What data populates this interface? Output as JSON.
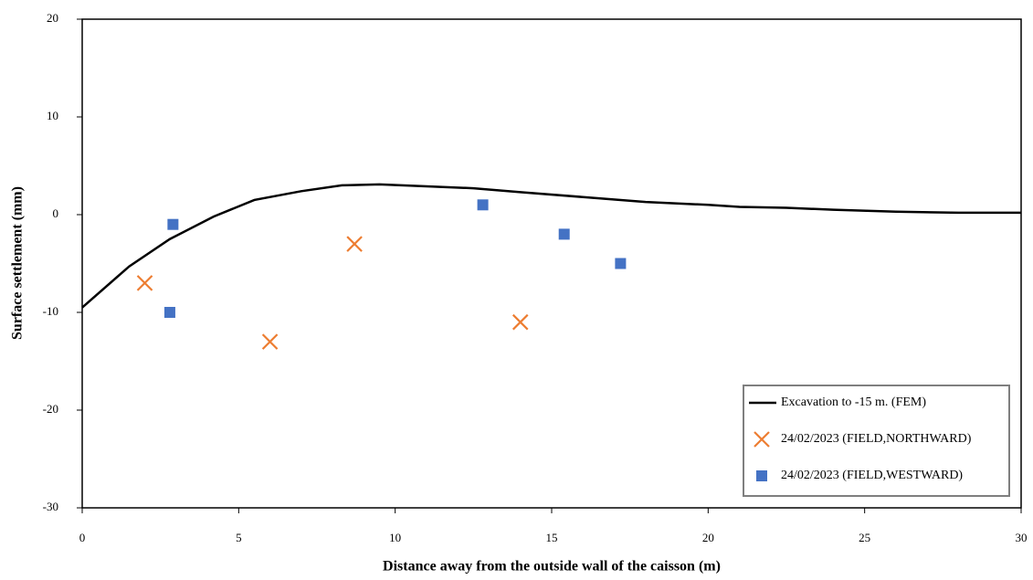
{
  "chart_data": {
    "type": "combo",
    "xlabel": "Distance away from the outside wall of the caisson (m)",
    "ylabel": "Surface settlement (mm)",
    "xlim": [
      0,
      30
    ],
    "xticks": [
      0,
      5,
      10,
      15,
      20,
      25,
      30
    ],
    "ylim": [
      -30,
      20
    ],
    "yticks": [
      -30,
      -20,
      -10,
      0,
      10,
      20
    ],
    "legend": "lower right",
    "series": [
      {
        "name": "Excavation to -15 m.  (FEM)",
        "type": "line",
        "color": "#000000",
        "x": [
          0,
          1.5,
          2.8,
          4.2,
          5.5,
          7,
          8.3,
          9.5,
          11,
          12.5,
          14,
          16,
          18,
          20,
          21,
          22.5,
          24,
          26,
          28,
          30
        ],
        "values": [
          -9.5,
          -5.3,
          -2.5,
          -0.2,
          1.5,
          2.4,
          3.0,
          3.1,
          2.9,
          2.7,
          2.3,
          1.8,
          1.3,
          1.0,
          0.8,
          0.7,
          0.5,
          0.3,
          0.2,
          0.2
        ]
      },
      {
        "name": "24/02/2023 (FIELD,NORTHWARD)",
        "type": "scatter",
        "marker": "x",
        "color": "#ed7d31",
        "x": [
          2.0,
          6.0,
          8.7,
          14.0
        ],
        "values": [
          -7,
          -13,
          -3,
          -11
        ]
      },
      {
        "name": "24/02/2023 (FIELD,WESTWARD)",
        "type": "scatter",
        "marker": "square",
        "color": "#4472c4",
        "x": [
          2.9,
          2.8,
          12.8,
          15.4,
          17.2
        ],
        "values": [
          -1,
          -10,
          1,
          -2,
          -5
        ]
      }
    ]
  }
}
